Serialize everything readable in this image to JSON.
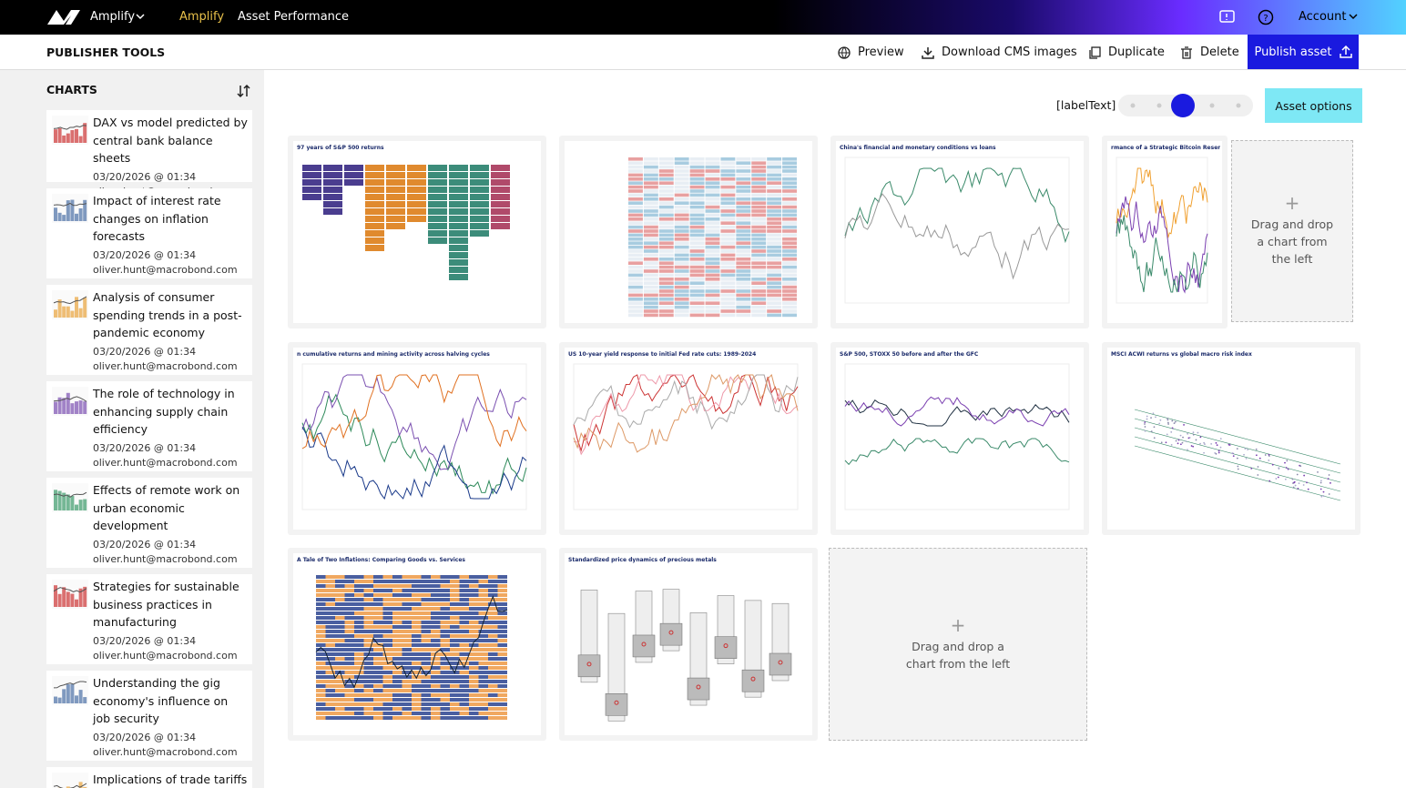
{
  "nav": {
    "product_menu": "Amplify",
    "links": [
      "Amplify",
      "Asset Performance"
    ],
    "account": "Account"
  },
  "toolbar": {
    "title": "PUBLISHER TOOLS",
    "actions": [
      "Preview",
      "Download CMS images",
      "Duplicate",
      "Delete"
    ],
    "publish": "Publish asset"
  },
  "sidebar": {
    "heading": "CHARTS",
    "items": [
      {
        "title": "DAX vs model predicted by central bank balance sheets",
        "date": "03/20/2026 @ 01:34",
        "author": "oliver.hunt@macrobond.com"
      },
      {
        "title": "Impact of interest rate changes on inflation forecasts",
        "date": "03/20/2026 @ 01:34",
        "author": "oliver.hunt@macrobond.com"
      },
      {
        "title": "Analysis of consumer spending trends in a post-pandemic economy",
        "date": "03/20/2026 @ 01:34",
        "author": "oliver.hunt@macrobond.com"
      },
      {
        "title": "The role of technology in enhancing supply chain efficiency",
        "date": "03/20/2026 @ 01:34",
        "author": "oliver.hunt@macrobond.com"
      },
      {
        "title": "Effects of remote work on urban economic development",
        "date": "03/20/2026 @ 01:34",
        "author": "oliver.hunt@macrobond.com"
      },
      {
        "title": "Strategies for sustainable business practices in manufacturing",
        "date": "03/20/2026 @ 01:34",
        "author": "oliver.hunt@macrobond.com"
      },
      {
        "title": "Understanding the gig economy's influence on job security",
        "date": "03/20/2026 @ 01:34",
        "author": "oliver.hunt@macrobond.com"
      },
      {
        "title": "Implications of trade tariffs"
      }
    ]
  },
  "canvas": {
    "slider_label": "[labelText]",
    "asset_options": "Asset options",
    "chart_titles": [
      "97 years of S&P 500 returns",
      "China's financial and monetary conditions vs loans",
      "rmance of a Strategic Bitcoin Reserve",
      "n cumulative returns and mining activity across halving cycles",
      "US 10-year yield response to initial Fed rate cuts: 1989-2024",
      "S&P 500, STOXX 50 before and after the GFC",
      "MSCI ACWI returns vs global macro risk index",
      "A Tale of Two Inflations: Comparing Goods vs. Services",
      "Standardized price dynamics of precious metals"
    ],
    "dropzone_text": "Drag and drop a chart from the left"
  }
}
